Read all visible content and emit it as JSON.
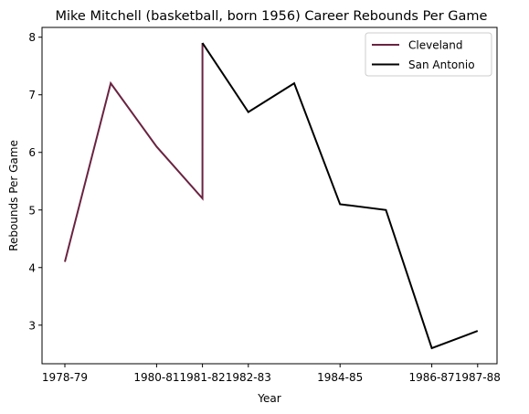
{
  "chart_data": {
    "type": "line",
    "title": "Mike Mitchell (basketball, born 1956) Career Rebounds Per Game",
    "xlabel": "Year",
    "ylabel": "Rebounds Per Game",
    "x_ticks": [
      "1978-79",
      "1980-81",
      "1981-82",
      "1982-83",
      "1984-85",
      "1986-87",
      "1987-88"
    ],
    "ylim": [
      2.33,
      8.17
    ],
    "y_ticks": [
      3,
      4,
      5,
      6,
      7,
      8
    ],
    "legend_position": "top-right",
    "grid": false,
    "series": [
      {
        "name": "Cleveland",
        "color": "#6a2340",
        "points": [
          {
            "season": "1978-79",
            "value": 4.1
          },
          {
            "season": "1979-80",
            "value": 7.2
          },
          {
            "season": "1980-81",
            "value": 6.1
          },
          {
            "season": "1981-82",
            "value": 5.2
          },
          {
            "season": "1981-82",
            "value": 7.9
          }
        ]
      },
      {
        "name": "San Antonio",
        "color": "#000000",
        "points": [
          {
            "season": "1981-82",
            "value": 7.9
          },
          {
            "season": "1982-83",
            "value": 6.7
          },
          {
            "season": "1983-84",
            "value": 7.2
          },
          {
            "season": "1984-85",
            "value": 5.1
          },
          {
            "season": "1985-86",
            "value": 5.0
          },
          {
            "season": "1986-87",
            "value": 2.6
          },
          {
            "season": "1987-88",
            "value": 2.9
          }
        ]
      }
    ]
  }
}
